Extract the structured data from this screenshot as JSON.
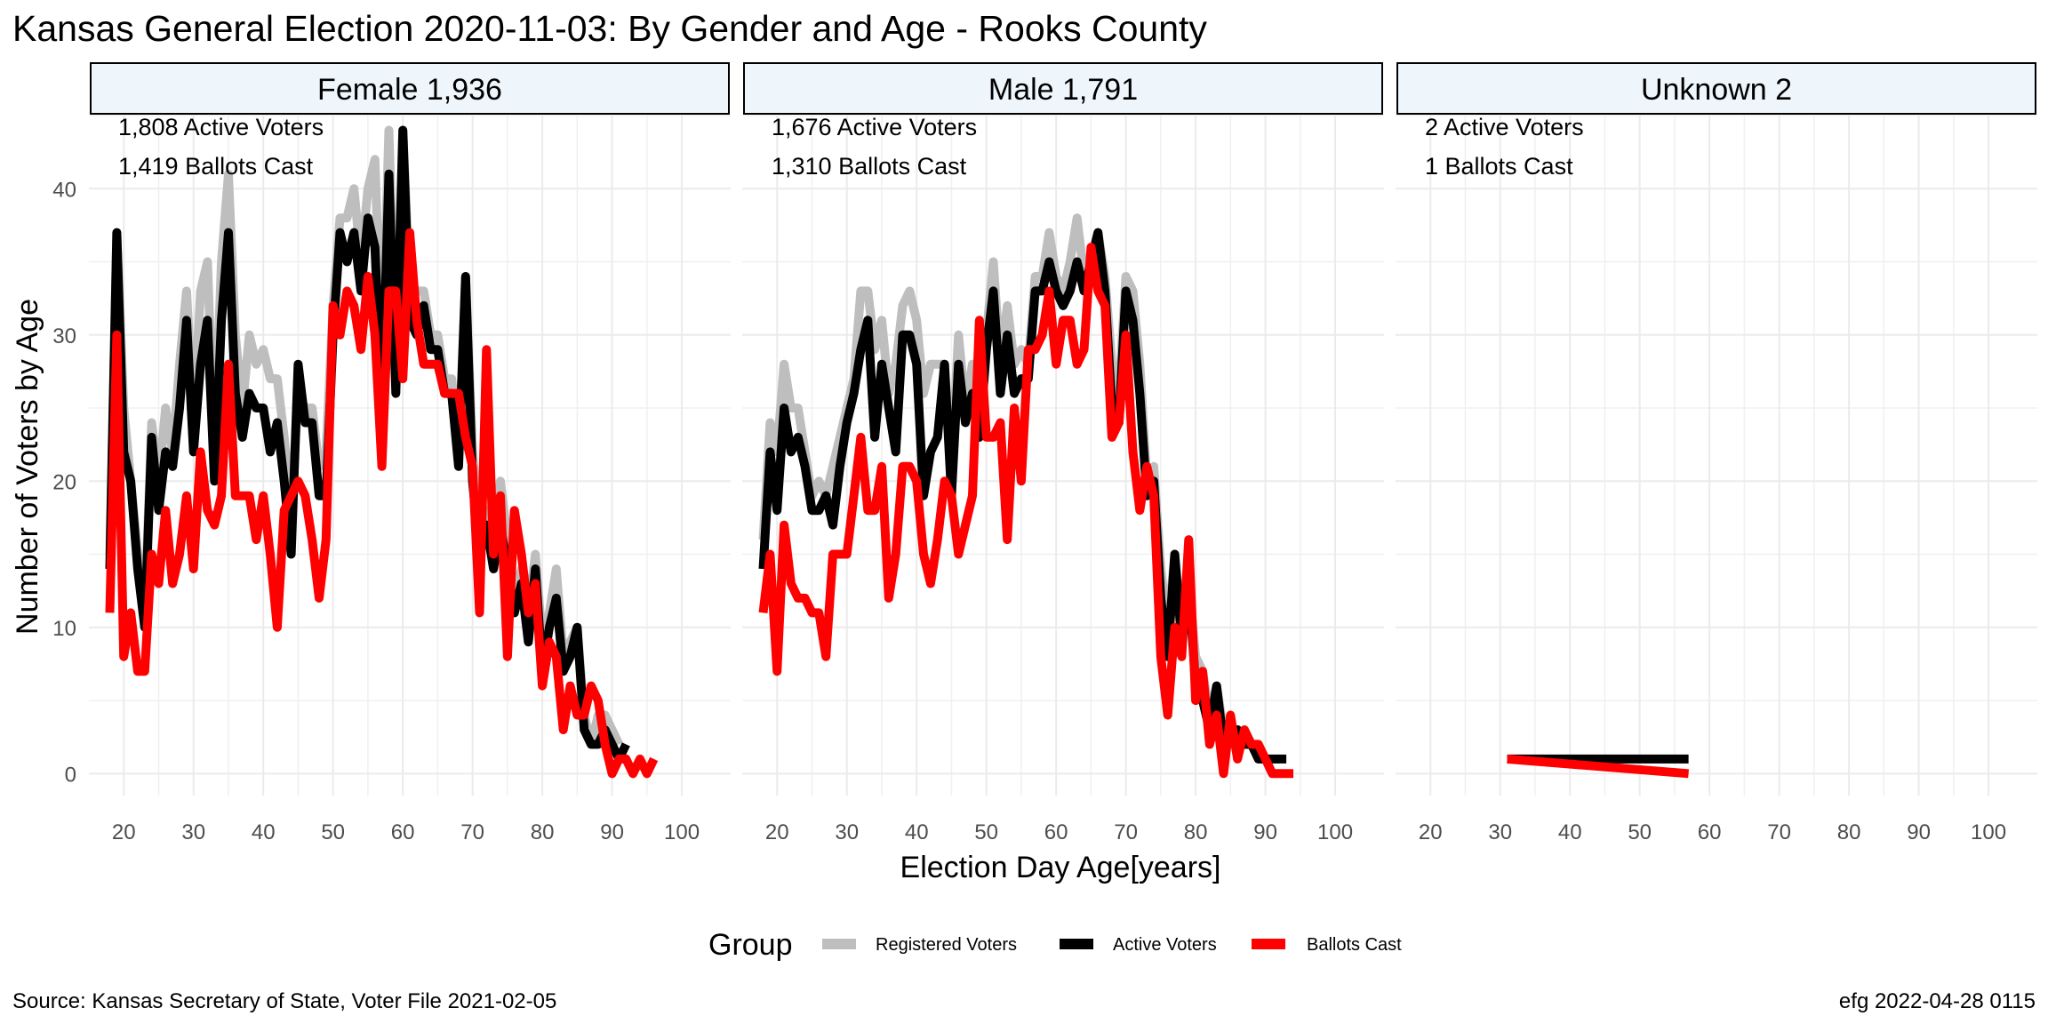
{
  "title": "Kansas General Election 2020-11-03:  By Gender and Age - Rooks County",
  "xlabel": "Election Day Age[years]",
  "ylabel": "Number of Voters by Age",
  "legend": {
    "title": "Group",
    "items": [
      {
        "label": "Registered Voters",
        "color": "#bebebe"
      },
      {
        "label": "Active Voters",
        "color": "#000000"
      },
      {
        "label": "Ballots Cast",
        "color": "#ff0000"
      }
    ]
  },
  "caption_left": "Source:  Kansas Secretary of State, Voter File  2021-02-05",
  "caption_right": "efg 2022-04-28 0115",
  "chart_data": {
    "type": "line",
    "xlim": [
      15,
      107
    ],
    "ylim": [
      -1.5,
      45
    ],
    "x_ticks": [
      20,
      30,
      40,
      50,
      60,
      70,
      80,
      90,
      100
    ],
    "y_ticks": [
      0,
      10,
      20,
      30,
      40
    ],
    "strip_fill": "#eef6fc",
    "panels": [
      {
        "label": "Female 1,936",
        "annotations": [
          "1,808 Active Voters",
          "1,419 Ballots Cast"
        ],
        "x_start": 18,
        "series": [
          {
            "name": "Registered Voters",
            "color": "#bebebe",
            "values": [
              15,
              37,
              25,
              20,
              15,
              11,
              24,
              20,
              25,
              22,
              28,
              33,
              24,
              33,
              35,
              22,
              35,
              41,
              30,
              25,
              30,
              28,
              29,
              27,
              27,
              23,
              18,
              26,
              25,
              25,
              21,
              22,
              32,
              38,
              38,
              40,
              35,
              40,
              42,
              28,
              44,
              28,
              44,
              33,
              33,
              33,
              30,
              30,
              27,
              27,
              22,
              34,
              22,
              17,
              18,
              16,
              20,
              16,
              12,
              14,
              11,
              15,
              9,
              11,
              14,
              8,
              9,
              10,
              4,
              2,
              4,
              4,
              3,
              2
            ]
          },
          {
            "name": "Active Voters",
            "color": "#000000",
            "values": [
              14,
              37,
              22,
              20,
              14,
              10,
              23,
              18,
              22,
              21,
              25,
              31,
              22,
              28,
              31,
              20,
              31,
              37,
              26,
              23,
              26,
              25,
              25,
              22,
              24,
              20,
              15,
              28,
              24,
              24,
              19,
              19,
              30,
              37,
              35,
              37,
              33,
              38,
              36,
              25,
              41,
              26,
              44,
              31,
              30,
              32,
              29,
              29,
              26,
              26,
              21,
              34,
              20,
              15,
              17,
              14,
              17,
              14,
              11,
              13,
              9,
              14,
              7,
              10,
              12,
              7,
              8,
              10,
              3,
              2,
              2,
              3,
              2,
              1,
              2
            ]
          },
          {
            "name": "Ballots Cast",
            "color": "#ff0000",
            "values": [
              11,
              30,
              8,
              11,
              7,
              7,
              15,
              13,
              18,
              13,
              15,
              19,
              14,
              22,
              18,
              17,
              19,
              28,
              19,
              19,
              19,
              16,
              19,
              15,
              10,
              18,
              19,
              20,
              19,
              16,
              12,
              16,
              32,
              30,
              33,
              32,
              29,
              34,
              30,
              21,
              33,
              33,
              27,
              37,
              31,
              28,
              28,
              28,
              26,
              26,
              26,
              23,
              21,
              11,
              29,
              15,
              19,
              8,
              18,
              15,
              11,
              13,
              6,
              9,
              8,
              3,
              6,
              4,
              4,
              6,
              5,
              2,
              0,
              1,
              1,
              0,
              1,
              0,
              1
            ]
          }
        ]
      },
      {
        "label": "Male 1,791",
        "annotations": [
          "1,676 Active Voters",
          "1,310 Ballots Cast"
        ],
        "x_start": 18,
        "series": [
          {
            "name": "Registered Voters",
            "color": "#bebebe",
            "values": [
              16,
              24,
              22,
              28,
              25,
              25,
              22,
              19,
              20,
              19,
              21,
              23,
              25,
              27,
              33,
              33,
              29,
              31,
              26,
              28,
              32,
              33,
              31,
              26,
              28,
              28,
              28,
              21,
              30,
              25,
              28,
              27,
              30,
              35,
              28,
              32,
              28,
              29,
              28,
              34,
              34,
              37,
              34,
              33,
              35,
              38,
              34,
              35,
              37,
              34,
              28,
              26,
              34,
              33,
              28,
              20,
              21,
              14,
              10,
              15,
              10,
              13,
              8,
              7,
              4,
              6,
              3,
              3,
              3,
              2,
              2,
              1,
              1,
              1,
              1
            ]
          },
          {
            "name": "Active Voters",
            "color": "#000000",
            "values": [
              14,
              22,
              18,
              25,
              22,
              23,
              21,
              18,
              18,
              19,
              17,
              21,
              24,
              26,
              29,
              31,
              23,
              28,
              25,
              22,
              30,
              30,
              28,
              19,
              22,
              23,
              28,
              19,
              28,
              24,
              26,
              23,
              29,
              33,
              26,
              30,
              26,
              27,
              27,
              33,
              33,
              35,
              33,
              32,
              33,
              35,
              33,
              35,
              37,
              33,
              25,
              24,
              33,
              31,
              26,
              19,
              20,
              12,
              8,
              15,
              9,
              13,
              6,
              5,
              3,
              6,
              2,
              3,
              3,
              2,
              2,
              1,
              1,
              1,
              1,
              1
            ]
          },
          {
            "name": "Ballots Cast",
            "color": "#ff0000",
            "values": [
              11,
              15,
              7,
              17,
              13,
              12,
              12,
              11,
              11,
              8,
              15,
              15,
              15,
              19,
              23,
              18,
              18,
              21,
              12,
              15,
              21,
              21,
              20,
              15,
              13,
              16,
              20,
              19,
              15,
              17,
              19,
              31,
              23,
              23,
              24,
              16,
              25,
              20,
              29,
              29,
              30,
              33,
              28,
              31,
              31,
              28,
              29,
              36,
              33,
              32,
              23,
              24,
              30,
              22,
              18,
              21,
              19,
              8,
              4,
              10,
              8,
              16,
              5,
              7,
              2,
              4,
              0,
              4,
              1,
              3,
              2,
              2,
              1,
              0,
              0,
              0,
              0
            ]
          }
        ]
      },
      {
        "label": "Unknown 2",
        "annotations": [
          "2 Active Voters",
          "1 Ballots Cast"
        ],
        "series": [
          {
            "name": "Registered Voters",
            "color": "#bebebe",
            "x": [
              31,
              57
            ],
            "y": [
              1,
              1
            ]
          },
          {
            "name": "Active Voters",
            "color": "#000000",
            "x": [
              31,
              57
            ],
            "y": [
              1,
              1
            ]
          },
          {
            "name": "Ballots Cast",
            "color": "#ff0000",
            "x": [
              31,
              57
            ],
            "y": [
              1,
              0
            ]
          }
        ]
      }
    ]
  }
}
